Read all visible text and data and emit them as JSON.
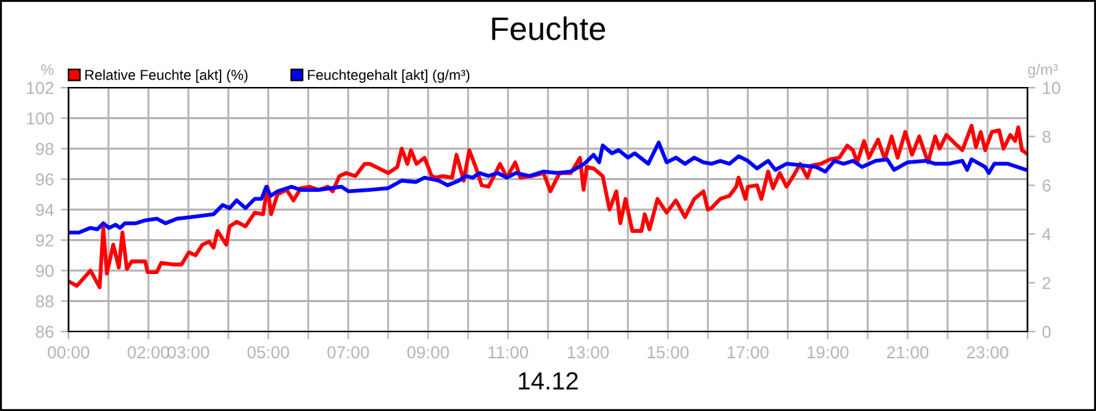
{
  "chart_data": {
    "type": "line",
    "title": "Feuchte",
    "xlabel": "14.12",
    "ylabel": "%",
    "y2label": "g/m³",
    "xlim": [
      0,
      24
    ],
    "ylim": [
      86,
      102
    ],
    "y2lim": [
      0,
      10
    ],
    "xticks": [
      {
        "value": 0,
        "label": "00:00"
      },
      {
        "value": 1,
        "label": null
      },
      {
        "value": 2,
        "label": "02:00"
      },
      {
        "value": 3,
        "label": "03:00"
      },
      {
        "value": 4,
        "label": null
      },
      {
        "value": 5,
        "label": "05:00"
      },
      {
        "value": 6,
        "label": null
      },
      {
        "value": 7,
        "label": "07:00"
      },
      {
        "value": 8,
        "label": null
      },
      {
        "value": 9,
        "label": "09:00"
      },
      {
        "value": 10,
        "label": null
      },
      {
        "value": 11,
        "label": "11:00"
      },
      {
        "value": 12,
        "label": null
      },
      {
        "value": 13,
        "label": "13:00"
      },
      {
        "value": 14,
        "label": null
      },
      {
        "value": 15,
        "label": "15:00"
      },
      {
        "value": 16,
        "label": null
      },
      {
        "value": 17,
        "label": "17:00"
      },
      {
        "value": 18,
        "label": null
      },
      {
        "value": 19,
        "label": "19:00"
      },
      {
        "value": 20,
        "label": null
      },
      {
        "value": 21,
        "label": "21:00"
      },
      {
        "value": 22,
        "label": null
      },
      {
        "value": 23,
        "label": "23:00"
      },
      {
        "value": 24,
        "label": null
      }
    ],
    "yticks": [
      86,
      88,
      90,
      92,
      94,
      96,
      98,
      100,
      102
    ],
    "y2ticks": [
      0,
      2,
      4,
      6,
      8,
      10
    ],
    "grid": true,
    "legend": "top left",
    "marker": "none",
    "line_style": "solid",
    "series": [
      {
        "name": "Relative Feuchte [akt] (%)",
        "color": "#ff0000",
        "x": [
          0,
          0.21,
          0.38,
          0.55,
          0.78,
          0.87,
          0.96,
          1.12,
          1.26,
          1.35,
          1.46,
          1.58,
          1.92,
          1.98,
          2.21,
          2.32,
          2.61,
          2.83,
          3.01,
          3.18,
          3.35,
          3.52,
          3.63,
          3.73,
          3.95,
          4.03,
          4.21,
          4.43,
          4.66,
          4.87,
          4.98,
          5.07,
          5.23,
          5.46,
          5.63,
          5.81,
          6.03,
          6.26,
          6.49,
          6.61,
          6.78,
          6.95,
          7.18,
          7.41,
          7.54,
          8.0,
          8.23,
          8.34,
          8.48,
          8.57,
          8.71,
          8.91,
          9.09,
          9.2,
          9.37,
          9.6,
          9.71,
          9.89,
          10.03,
          10.19,
          10.34,
          10.51,
          10.63,
          10.8,
          10.97,
          11.18,
          11.31,
          11.6,
          11.89,
          12.06,
          12.29,
          12.57,
          12.8,
          12.89,
          12.97,
          13.14,
          13.37,
          13.54,
          13.71,
          13.81,
          13.94,
          14.11,
          14.34,
          14.42,
          14.54,
          14.74,
          14.97,
          15.2,
          15.43,
          15.66,
          15.89,
          16.0,
          16.09,
          16.31,
          16.54,
          16.71,
          16.77,
          16.94,
          17.0,
          17.23,
          17.34,
          17.51,
          17.63,
          17.8,
          17.97,
          18.14,
          18.31,
          18.49,
          18.6,
          18.83,
          19.06,
          19.29,
          19.49,
          19.63,
          19.74,
          19.91,
          20.03,
          20.26,
          20.43,
          20.6,
          20.75,
          20.94,
          21.11,
          21.29,
          21.51,
          21.69,
          21.8,
          21.97,
          22.2,
          22.37,
          22.6,
          22.71,
          22.83,
          22.94,
          23.11,
          23.29,
          23.4,
          23.57,
          23.69,
          23.77,
          23.86,
          23.97
        ],
        "values": [
          89.3,
          89.0,
          89.5,
          90.0,
          88.9,
          92.8,
          89.8,
          91.7,
          90.2,
          92.5,
          90.1,
          90.6,
          90.6,
          89.9,
          89.9,
          90.5,
          90.4,
          90.4,
          91.2,
          91.0,
          91.7,
          91.9,
          91.5,
          92.6,
          91.7,
          92.9,
          93.2,
          92.9,
          93.8,
          93.7,
          95.5,
          93.7,
          95.0,
          95.3,
          94.6,
          95.4,
          95.5,
          95.3,
          95.5,
          95.2,
          96.2,
          96.4,
          96.2,
          97.0,
          97.0,
          96.4,
          96.8,
          98.0,
          97.0,
          97.9,
          97.0,
          97.4,
          96.2,
          96.1,
          96.2,
          96.1,
          97.6,
          95.9,
          97.9,
          96.8,
          95.6,
          95.5,
          96.1,
          97.0,
          96.1,
          97.1,
          96.1,
          96.2,
          96.4,
          95.2,
          96.4,
          96.4,
          97.4,
          95.3,
          96.8,
          96.7,
          96.2,
          94.0,
          95.2,
          93.1,
          94.7,
          92.6,
          92.6,
          93.7,
          92.7,
          94.7,
          93.8,
          94.6,
          93.5,
          94.7,
          95.2,
          94.0,
          94.1,
          94.7,
          94.9,
          95.5,
          96.1,
          94.7,
          95.5,
          95.6,
          94.7,
          96.5,
          95.4,
          96.4,
          95.5,
          96.2,
          97.0,
          96.1,
          96.9,
          97.0,
          97.3,
          97.4,
          98.2,
          97.9,
          97.1,
          98.5,
          97.4,
          98.6,
          97.3,
          98.8,
          97.4,
          99.1,
          97.6,
          98.8,
          97.1,
          98.8,
          98.0,
          98.9,
          98.3,
          97.9,
          99.5,
          98.1,
          99.1,
          97.9,
          99.1,
          99.2,
          98.0,
          98.9,
          98.5,
          99.4,
          97.9,
          97.7
        ]
      },
      {
        "name": "Feuchtegehalt [akt] (g/m³)",
        "color": "#0000ff",
        "axis": "y2",
        "x": [
          0,
          0.26,
          0.55,
          0.72,
          0.87,
          1.01,
          1.18,
          1.29,
          1.41,
          1.69,
          1.92,
          2.21,
          2.43,
          2.72,
          3.06,
          3.63,
          3.86,
          4.03,
          4.21,
          4.43,
          4.66,
          4.83,
          4.95,
          5.06,
          5.23,
          5.58,
          5.81,
          6.26,
          6.83,
          7.01,
          7.52,
          8.0,
          8.34,
          8.69,
          8.91,
          9.26,
          9.49,
          9.77,
          9.94,
          10.11,
          10.29,
          10.51,
          10.74,
          10.97,
          11.2,
          11.54,
          11.89,
          12.23,
          12.57,
          12.91,
          13.14,
          13.28,
          13.37,
          13.6,
          13.77,
          14.0,
          14.17,
          14.51,
          14.77,
          14.97,
          15.2,
          15.43,
          15.66,
          15.89,
          16.09,
          16.31,
          16.54,
          16.77,
          17.0,
          17.23,
          17.51,
          17.69,
          17.97,
          18.37,
          18.71,
          18.94,
          19.17,
          19.4,
          19.63,
          19.86,
          20.2,
          20.49,
          20.66,
          21.0,
          21.46,
          21.69,
          22.03,
          22.37,
          22.49,
          22.6,
          22.94,
          23.03,
          23.17,
          23.51,
          23.97
        ],
        "values": [
          4.06,
          4.06,
          4.25,
          4.19,
          4.44,
          4.25,
          4.38,
          4.25,
          4.44,
          4.44,
          4.56,
          4.63,
          4.44,
          4.63,
          4.69,
          4.81,
          5.19,
          5.06,
          5.38,
          5.06,
          5.44,
          5.44,
          5.94,
          5.56,
          5.75,
          5.94,
          5.81,
          5.81,
          5.94,
          5.75,
          5.81,
          5.88,
          6.19,
          6.13,
          6.31,
          6.19,
          6.0,
          6.19,
          6.38,
          6.31,
          6.5,
          6.38,
          6.5,
          6.31,
          6.5,
          6.38,
          6.56,
          6.5,
          6.56,
          6.88,
          7.25,
          6.94,
          7.63,
          7.31,
          7.44,
          7.13,
          7.31,
          6.88,
          7.75,
          6.94,
          7.13,
          6.88,
          7.13,
          6.94,
          6.88,
          7.0,
          6.88,
          7.19,
          7.0,
          6.69,
          7.0,
          6.63,
          6.88,
          6.81,
          6.75,
          6.56,
          7.0,
          6.88,
          7.0,
          6.75,
          7.0,
          7.06,
          6.63,
          6.94,
          7.0,
          6.88,
          6.88,
          7.0,
          6.63,
          7.06,
          6.75,
          6.5,
          6.88,
          6.88,
          6.63
        ]
      }
    ]
  }
}
